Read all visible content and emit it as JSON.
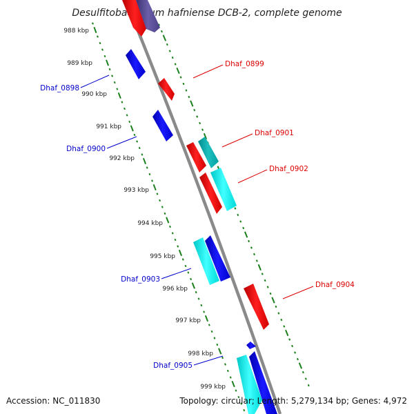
{
  "title": "Desulfitobacterium hafniense DCB-2, complete genome",
  "footer": {
    "accession": "Accession: NC_011830",
    "topology": "Topology: circular; Length: 5,279,134 bp; Genes: 4,972"
  },
  "colors": {
    "backbone": "#808080",
    "ticks": "#1a7f1a",
    "forward_gene": "#ff0000",
    "reverse_gene": "#0000ff",
    "cyan_gene": "#00e0e0",
    "forward_label": "#dd0000",
    "reverse_label": "#0000cc",
    "text": "#222222"
  },
  "kbp_ticks": [
    "988 kbp",
    "989 kbp",
    "990 kbp",
    "991 kbp",
    "992 kbp",
    "993 kbp",
    "994 kbp",
    "995 kbp",
    "996 kbp",
    "997 kbp",
    "998 kbp",
    "999 kbp"
  ],
  "gene_labels": [
    {
      "text": "Dhaf_0898",
      "strand": "reverse"
    },
    {
      "text": "Dhaf_0899",
      "strand": "forward"
    },
    {
      "text": "Dhaf_0900",
      "strand": "reverse"
    },
    {
      "text": "Dhaf_0901",
      "strand": "forward"
    },
    {
      "text": "Dhaf_0902",
      "strand": "forward"
    },
    {
      "text": "Dhaf_0903",
      "strand": "reverse"
    },
    {
      "text": "Dhaf_0904",
      "strand": "forward"
    },
    {
      "text": "Dhaf_0905",
      "strand": "reverse"
    }
  ]
}
